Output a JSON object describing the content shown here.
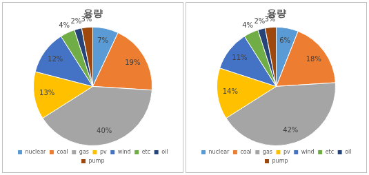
{
  "chart_data": [
    {
      "type": "pie",
      "title": "용량",
      "categories": [
        "nuclear",
        "coal",
        "gas",
        "pv",
        "wind",
        "etc",
        "oil",
        "pump"
      ],
      "values": [
        7,
        19,
        40,
        13,
        12,
        4,
        2,
        3
      ],
      "value_labels": [
        "7%",
        "19%",
        "40%",
        "13%",
        "12%",
        "4%",
        "2%",
        "3%"
      ],
      "colors": [
        "#5b9bd5",
        "#ed7d31",
        "#a5a5a5",
        "#ffc000",
        "#4472c4",
        "#70ad47",
        "#264478",
        "#9e480e"
      ],
      "legend": "bottom",
      "data_labels": true
    },
    {
      "type": "pie",
      "title": "용량",
      "categories": [
        "nuclear",
        "coal",
        "gas",
        "pv",
        "wind",
        "etc",
        "oil",
        "pump"
      ],
      "values": [
        6,
        18,
        42,
        14,
        11,
        4,
        2,
        3
      ],
      "value_labels": [
        "6%",
        "18%",
        "42%",
        "14%",
        "11%",
        "4%",
        "2%",
        "3%"
      ],
      "colors": [
        "#5b9bd5",
        "#ed7d31",
        "#a5a5a5",
        "#ffc000",
        "#4472c4",
        "#70ad47",
        "#264478",
        "#9e480e"
      ],
      "legend": "bottom",
      "data_labels": true
    }
  ]
}
